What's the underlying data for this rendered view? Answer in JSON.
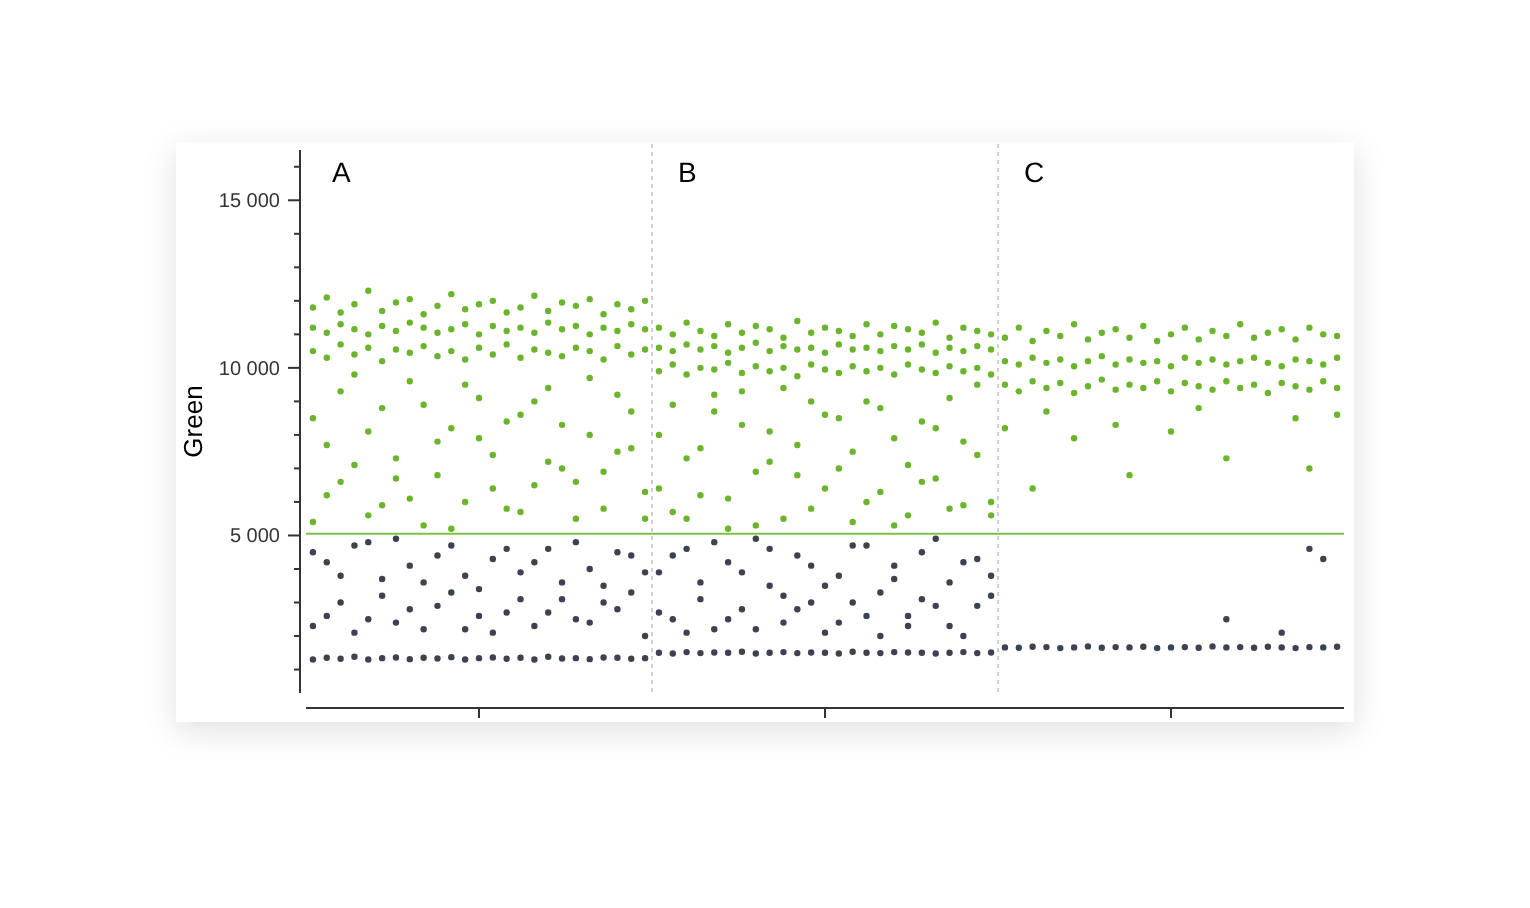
{
  "chart_data": {
    "type": "scatter",
    "ylabel": "Green",
    "marker": "circle",
    "annotations": [
      "A",
      "B",
      "C"
    ],
    "categories": [
      null,
      null,
      null,
      null,
      null,
      null,
      null,
      null,
      null,
      null,
      null,
      null,
      null,
      null,
      null,
      null,
      null,
      null,
      null,
      null,
      null,
      null,
      null,
      null,
      null,
      null,
      null,
      null,
      null,
      null,
      null,
      null,
      null,
      null,
      null,
      null,
      null,
      null,
      null,
      null,
      null,
      null,
      null,
      null,
      null,
      null,
      null,
      null,
      null,
      null,
      null,
      null,
      null,
      null,
      null,
      null,
      null,
      null,
      null,
      null,
      null,
      null,
      null,
      null,
      null,
      null,
      null,
      null,
      null,
      null,
      null,
      null,
      null,
      null,
      null
    ],
    "ylim": [
      300,
      16500
    ],
    "yticks": [
      {
        "value": 1000,
        "label": null
      },
      {
        "value": 2000,
        "label": null
      },
      {
        "value": 3000,
        "label": null
      },
      {
        "value": 4000,
        "label": null
      },
      {
        "value": 5000,
        "label": "5 000"
      },
      {
        "value": 6000,
        "label": null
      },
      {
        "value": 7000,
        "label": null
      },
      {
        "value": 8000,
        "label": null
      },
      {
        "value": 9000,
        "label": null
      },
      {
        "value": 10000,
        "label": "10 000"
      },
      {
        "value": 11000,
        "label": null
      },
      {
        "value": 12000,
        "label": null
      },
      {
        "value": 13000,
        "label": null
      },
      {
        "value": 14000,
        "label": null
      },
      {
        "value": 15000,
        "label": "15 000"
      },
      {
        "value": 16000,
        "label": null
      }
    ],
    "ref_lines": [
      {
        "axis": "y",
        "value": 5050,
        "color": "#7cc242"
      }
    ],
    "series": [
      {
        "color": "#6bb52c",
        "values": [
          11800,
          12100,
          11650,
          11900,
          12300,
          11700,
          11950,
          12050,
          11600,
          11850,
          12200,
          11750,
          11900,
          12000,
          11650,
          11800,
          12150,
          11700,
          11950,
          11850,
          12050,
          11600,
          11900,
          11750,
          12000,
          11200,
          11000,
          11350,
          11100,
          10950,
          11300,
          11050,
          11250,
          11150,
          10900,
          11400,
          11050,
          11200,
          11100,
          10950,
          11300,
          11000,
          11250,
          11150,
          11050,
          11350,
          10900,
          11200,
          11100,
          11000,
          10900,
          11200,
          10800,
          11100,
          10950,
          11300,
          10850,
          11050,
          11150,
          10900,
          11250,
          10800,
          11000,
          11200,
          10850,
          11100,
          10950,
          11300,
          10900,
          11050,
          11150,
          10850,
          11200,
          11000,
          10950
        ]
      },
      {
        "color": "#6bb52c",
        "values": [
          11200,
          11050,
          11300,
          11150,
          11000,
          11250,
          11100,
          11350,
          11200,
          11050,
          11150,
          11300,
          11000,
          11250,
          11100,
          11200,
          11050,
          11350,
          11150,
          11250,
          11000,
          11200,
          11100,
          11300,
          11150,
          10600,
          10500,
          10700,
          10550,
          10650,
          10450,
          10600,
          10750,
          10500,
          10650,
          10550,
          10600,
          10450,
          10700,
          10550,
          10600,
          10500,
          10650,
          10550,
          10700,
          10450,
          10600,
          10500,
          10650,
          10550,
          10200,
          10100,
          10300,
          10150,
          10250,
          10050,
          10200,
          10350,
          10100,
          10250,
          10150,
          10200,
          10050,
          10300,
          10150,
          10250,
          10100,
          10200,
          10300,
          10150,
          10050,
          10250,
          10200,
          10100,
          10300
        ]
      },
      {
        "color": "#6bb52c",
        "values": [
          10500,
          10300,
          10700,
          10400,
          10600,
          10200,
          10550,
          10450,
          10650,
          10350,
          10500,
          10250,
          10600,
          10400,
          10700,
          10300,
          10550,
          10450,
          10350,
          10600,
          10500,
          10250,
          10650,
          10400,
          10550,
          9900,
          10100,
          9800,
          10000,
          9950,
          10150,
          9850,
          10050,
          9900,
          10000,
          9750,
          10100,
          9950,
          9850,
          10050,
          9900,
          10000,
          9800,
          10100,
          9950,
          9850,
          10050,
          9900,
          10000,
          9800,
          9500,
          9300,
          9600,
          9400,
          9550,
          9250,
          9450,
          9650,
          9350,
          9500,
          9400,
          9600,
          9300,
          9550,
          9450,
          9350,
          9600,
          9400,
          9500,
          9250,
          9550,
          9450,
          9350,
          9600,
          9400
        ]
      },
      {
        "color": "#6bb52c",
        "values": [
          8500,
          6200,
          9300,
          7100,
          5600,
          8800,
          6700,
          9600,
          5300,
          7800,
          8200,
          6000,
          9100,
          7400,
          5800,
          8600,
          6500,
          9400,
          7000,
          5500,
          8000,
          6900,
          9200,
          7600,
          6300,
          6400,
          8900,
          5500,
          7600,
          9200,
          6100,
          8300,
          5300,
          7200,
          9400,
          6800,
          5800,
          8600,
          7000,
          5400,
          9000,
          6300,
          7900,
          5600,
          8400,
          6700,
          9100,
          5900,
          7400,
          6000,
          8200,
          null,
          6400,
          null,
          null,
          7900,
          null,
          null,
          null,
          6800,
          null,
          null,
          8100,
          null,
          null,
          null,
          7300,
          null,
          null,
          null,
          null,
          null,
          7000,
          null,
          8600
        ]
      },
      {
        "color": "#6bb52c",
        "values": [
          5400,
          7700,
          6600,
          9800,
          8100,
          5900,
          7300,
          6100,
          8900,
          6800,
          5200,
          9500,
          7900,
          6400,
          8400,
          5700,
          9000,
          7200,
          8300,
          6600,
          9700,
          5800,
          7500,
          8700,
          5500,
          8000,
          5700,
          7300,
          6200,
          8700,
          5200,
          9300,
          6900,
          8100,
          5500,
          7700,
          9000,
          6400,
          8500,
          7500,
          6000,
          8800,
          5300,
          7100,
          6600,
          8200,
          5800,
          7800,
          9500,
          5600,
          null,
          null,
          null,
          8700,
          null,
          null,
          null,
          null,
          8300,
          null,
          null,
          null,
          null,
          null,
          8800,
          null,
          null,
          null,
          null,
          null,
          null,
          8500,
          null,
          null,
          null
        ]
      },
      {
        "color": "#3d4150",
        "values": [
          4500,
          2600,
          3800,
          2100,
          4800,
          3200,
          2400,
          4100,
          3600,
          2900,
          4700,
          2200,
          3400,
          4300,
          2700,
          3900,
          2300,
          4600,
          3100,
          2500,
          4000,
          3500,
          2800,
          4400,
          2000,
          3900,
          2500,
          4600,
          3100,
          2200,
          4200,
          2800,
          4900,
          3500,
          2400,
          4400,
          3000,
          2100,
          3800,
          4700,
          2600,
          3300,
          4100,
          2300,
          4500,
          2900,
          3600,
          2000,
          4300,
          3200,
          null,
          null,
          null,
          null,
          null,
          null,
          null,
          null,
          null,
          null,
          null,
          null,
          null,
          null,
          null,
          null,
          2500,
          null,
          null,
          null,
          null,
          null,
          4600,
          null,
          null
        ]
      },
      {
        "color": "#3d4150",
        "values": [
          2300,
          4200,
          3000,
          4700,
          2500,
          3700,
          4900,
          2800,
          2200,
          4400,
          3300,
          3800,
          2600,
          2100,
          4600,
          3100,
          4200,
          2700,
          3600,
          4800,
          2400,
          3000,
          4500,
          3300,
          3900,
          2700,
          4400,
          2100,
          3600,
          4800,
          2500,
          3900,
          2200,
          4600,
          3200,
          2800,
          4100,
          3500,
          2400,
          3000,
          4700,
          2000,
          3700,
          2600,
          3100,
          4900,
          2300,
          4200,
          2900,
          3800,
          null,
          null,
          null,
          null,
          null,
          null,
          null,
          null,
          null,
          null,
          null,
          null,
          null,
          null,
          null,
          null,
          null,
          null,
          null,
          null,
          2100,
          null,
          null,
          4300,
          null
        ]
      },
      {
        "color": "#3d4150",
        "values": [
          1300,
          1350,
          1320,
          1380,
          1300,
          1340,
          1360,
          1310,
          1350,
          1330,
          1370,
          1300,
          1340,
          1360,
          1320,
          1350,
          1300,
          1380,
          1330,
          1340,
          1310,
          1360,
          1350,
          1320,
          1340,
          1500,
          1480,
          1520,
          1490,
          1510,
          1500,
          1530,
          1480,
          1500,
          1520,
          1490,
          1510,
          1500,
          1480,
          1530,
          1500,
          1490,
          1520,
          1510,
          1500,
          1480,
          1500,
          1520,
          1490,
          1510,
          1660,
          1650,
          1680,
          1670,
          1640,
          1660,
          1690,
          1650,
          1670,
          1660,
          1680,
          1640,
          1660,
          1670,
          1650,
          1690,
          1660,
          1670,
          1650,
          1680,
          1660,
          1640,
          1670,
          1660,
          1680
        ]
      }
    ]
  }
}
